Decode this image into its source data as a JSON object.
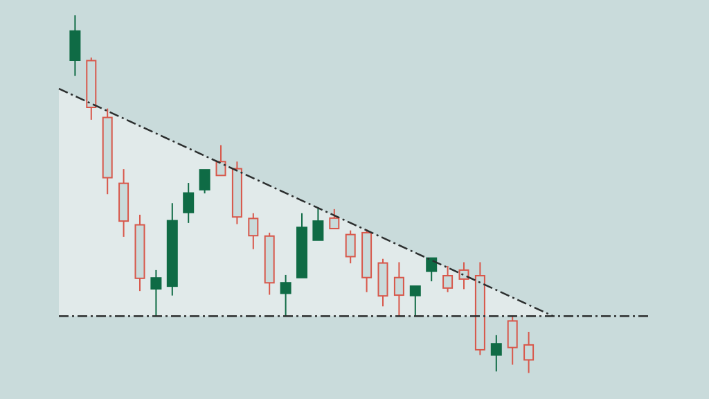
{
  "chart_data": {
    "type": "candlestick",
    "pattern": "descending-triangle",
    "breakout": "bearish",
    "axes": "hidden",
    "grid": false,
    "legend": "none",
    "ylim": [
      0,
      100
    ],
    "candles": [
      {
        "i": 1,
        "open": 87.5,
        "close": 95.5,
        "high": 99.6,
        "low": 83.4
      },
      {
        "i": 2,
        "open": 87.5,
        "close": 75.0,
        "high": 88.3,
        "low": 71.7
      },
      {
        "i": 3,
        "open": 72.3,
        "close": 56.2,
        "high": 74.7,
        "low": 51.8
      },
      {
        "i": 4,
        "open": 54.7,
        "close": 44.6,
        "high": 58.5,
        "low": 40.4
      },
      {
        "i": 5,
        "open": 43.6,
        "close": 29.3,
        "high": 46.3,
        "low": 25.9
      },
      {
        "i": 6,
        "open": 26.4,
        "close": 29.5,
        "high": 31.5,
        "low": 19.1
      },
      {
        "i": 7,
        "open": 27.1,
        "close": 44.8,
        "high": 49.4,
        "low": 24.7
      },
      {
        "i": 8,
        "open": 46.8,
        "close": 52.2,
        "high": 54.8,
        "low": 44.1
      },
      {
        "i": 9,
        "open": 52.9,
        "close": 58.4,
        "high": 58.4,
        "low": 52.0
      },
      {
        "i": 10,
        "open": 60.5,
        "close": 56.8,
        "high": 64.9,
        "low": 56.8
      },
      {
        "i": 11,
        "open": 58.6,
        "close": 45.7,
        "high": 60.5,
        "low": 43.8
      },
      {
        "i": 12,
        "open": 45.3,
        "close": 40.7,
        "high": 46.7,
        "low": 37.1
      },
      {
        "i": 13,
        "open": 40.6,
        "close": 28.1,
        "high": 41.5,
        "low": 24.9
      },
      {
        "i": 14,
        "open": 25.2,
        "close": 28.2,
        "high": 30.2,
        "low": 19.2
      },
      {
        "i": 15,
        "open": 29.4,
        "close": 43.0,
        "high": 46.7,
        "low": 29.4
      },
      {
        "i": 16,
        "open": 39.4,
        "close": 44.7,
        "high": 48.3,
        "low": 39.4
      },
      {
        "i": 17,
        "open": 45.4,
        "close": 42.6,
        "high": 47.8,
        "low": 42.6
      },
      {
        "i": 18,
        "open": 41.0,
        "close": 35.1,
        "high": 42.1,
        "low": 33.3
      },
      {
        "i": 19,
        "open": 41.5,
        "close": 29.5,
        "high": 42.4,
        "low": 25.6
      },
      {
        "i": 20,
        "open": 33.4,
        "close": 24.6,
        "high": 34.5,
        "low": 21.8
      },
      {
        "i": 21,
        "open": 29.5,
        "close": 24.8,
        "high": 33.6,
        "low": 19.2
      },
      {
        "i": 22,
        "open": 24.6,
        "close": 27.3,
        "high": 27.3,
        "low": 19.2
      },
      {
        "i": 23,
        "open": 31.1,
        "close": 34.8,
        "high": 34.8,
        "low": 28.5
      },
      {
        "i": 24,
        "open": 30.0,
        "close": 26.7,
        "high": 32.6,
        "low": 25.6
      },
      {
        "i": 25,
        "open": 31.5,
        "close": 29.1,
        "high": 33.6,
        "low": 26.4
      },
      {
        "i": 26,
        "open": 30.0,
        "close": 10.2,
        "high": 33.6,
        "low": 8.8
      },
      {
        "i": 27,
        "open": 8.7,
        "close": 11.9,
        "high": 14.1,
        "low": 4.4
      },
      {
        "i": 28,
        "open": 17.9,
        "close": 10.8,
        "high": 19.2,
        "low": 6.2
      },
      {
        "i": 29,
        "open": 11.5,
        "close": 7.5,
        "high": 15.0,
        "low": 4.0
      }
    ],
    "trendlines": [
      {
        "name": "descending-resistance",
        "from": {
          "i": 0,
          "value": 80.0
        },
        "to": {
          "i": 30.5,
          "value": 19.2
        }
      },
      {
        "name": "horizontal-support",
        "from": {
          "i": 0,
          "value": 19.2
        },
        "to": {
          "i": 36.5,
          "value": 19.2
        }
      }
    ],
    "colors": {
      "background": "#c9dbdb",
      "triangle_fill": "#e1eaea",
      "bearish": "#d8574a",
      "bullish": "#0f6b45",
      "trendline": "#2b2e2e"
    }
  }
}
